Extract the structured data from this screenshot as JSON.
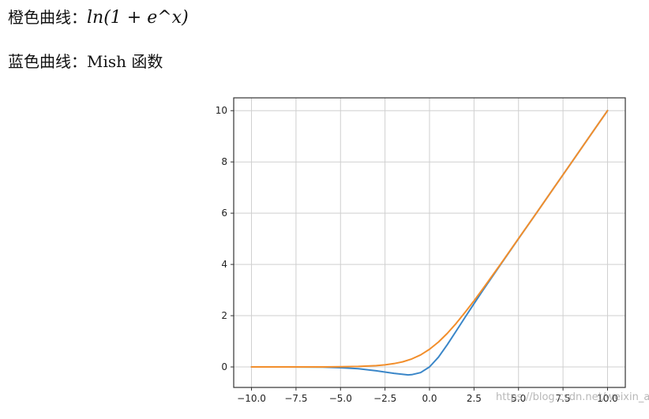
{
  "captions": [
    {
      "label": "橙色曲线：",
      "formula": "ln(1 + e^x)"
    },
    {
      "label": "蓝色曲线：",
      "formula": "Mish 函数"
    }
  ],
  "watermark": "https://blog.csdn.net/weixin_adde",
  "colors": {
    "orange": "#f28e2b",
    "blue": "#3a86c8",
    "grid": "#cfcfcf",
    "frame": "#333333"
  },
  "chart_data": {
    "type": "line",
    "title": "",
    "xlabel": "",
    "ylabel": "",
    "xlim": [
      -11,
      11
    ],
    "ylim": [
      -0.8,
      10.5
    ],
    "grid": true,
    "xticks": [
      -10.0,
      -7.5,
      -5.0,
      -2.5,
      0.0,
      2.5,
      5.0,
      7.5,
      10.0
    ],
    "xtick_labels": [
      "−10.0",
      "−7.5",
      "−5.0",
      "−2.5",
      "0.0",
      "2.5",
      "5.0",
      "7.5",
      "10.0"
    ],
    "yticks": [
      0,
      2,
      4,
      6,
      8,
      10
    ],
    "ytick_labels": [
      "0",
      "2",
      "4",
      "6",
      "8",
      "10"
    ],
    "series": [
      {
        "color": "#f28e2b",
        "x": [
          -10,
          -8,
          -6,
          -5,
          -4,
          -3,
          -2.5,
          -2,
          -1.5,
          -1,
          -0.5,
          0,
          0.5,
          1,
          1.5,
          2,
          2.5,
          3,
          4,
          5,
          6,
          7,
          8,
          9,
          10
        ],
        "y": [
          0.0,
          0.0,
          0.0,
          0.01,
          0.02,
          0.05,
          0.08,
          0.13,
          0.2,
          0.31,
          0.47,
          0.69,
          0.97,
          1.31,
          1.7,
          2.13,
          2.58,
          3.05,
          4.02,
          5.01,
          6.0,
          7.0,
          8.0,
          9.0,
          10.0
        ]
      },
      {
        "color": "#3a86c8",
        "x": [
          -10,
          -8,
          -6,
          -5,
          -4,
          -3,
          -2.5,
          -2,
          -1.5,
          -1.2,
          -1,
          -0.5,
          0,
          0.5,
          1,
          1.5,
          2,
          2.5,
          3,
          4,
          5,
          6,
          7,
          8,
          9,
          10
        ],
        "y": [
          0.0,
          0.0,
          -0.01,
          -0.03,
          -0.07,
          -0.15,
          -0.2,
          -0.25,
          -0.29,
          -0.31,
          -0.3,
          -0.22,
          0.0,
          0.38,
          0.87,
          1.4,
          1.94,
          2.47,
          2.99,
          4.0,
          5.0,
          6.0,
          7.0,
          8.0,
          9.0,
          10.0
        ]
      }
    ]
  }
}
